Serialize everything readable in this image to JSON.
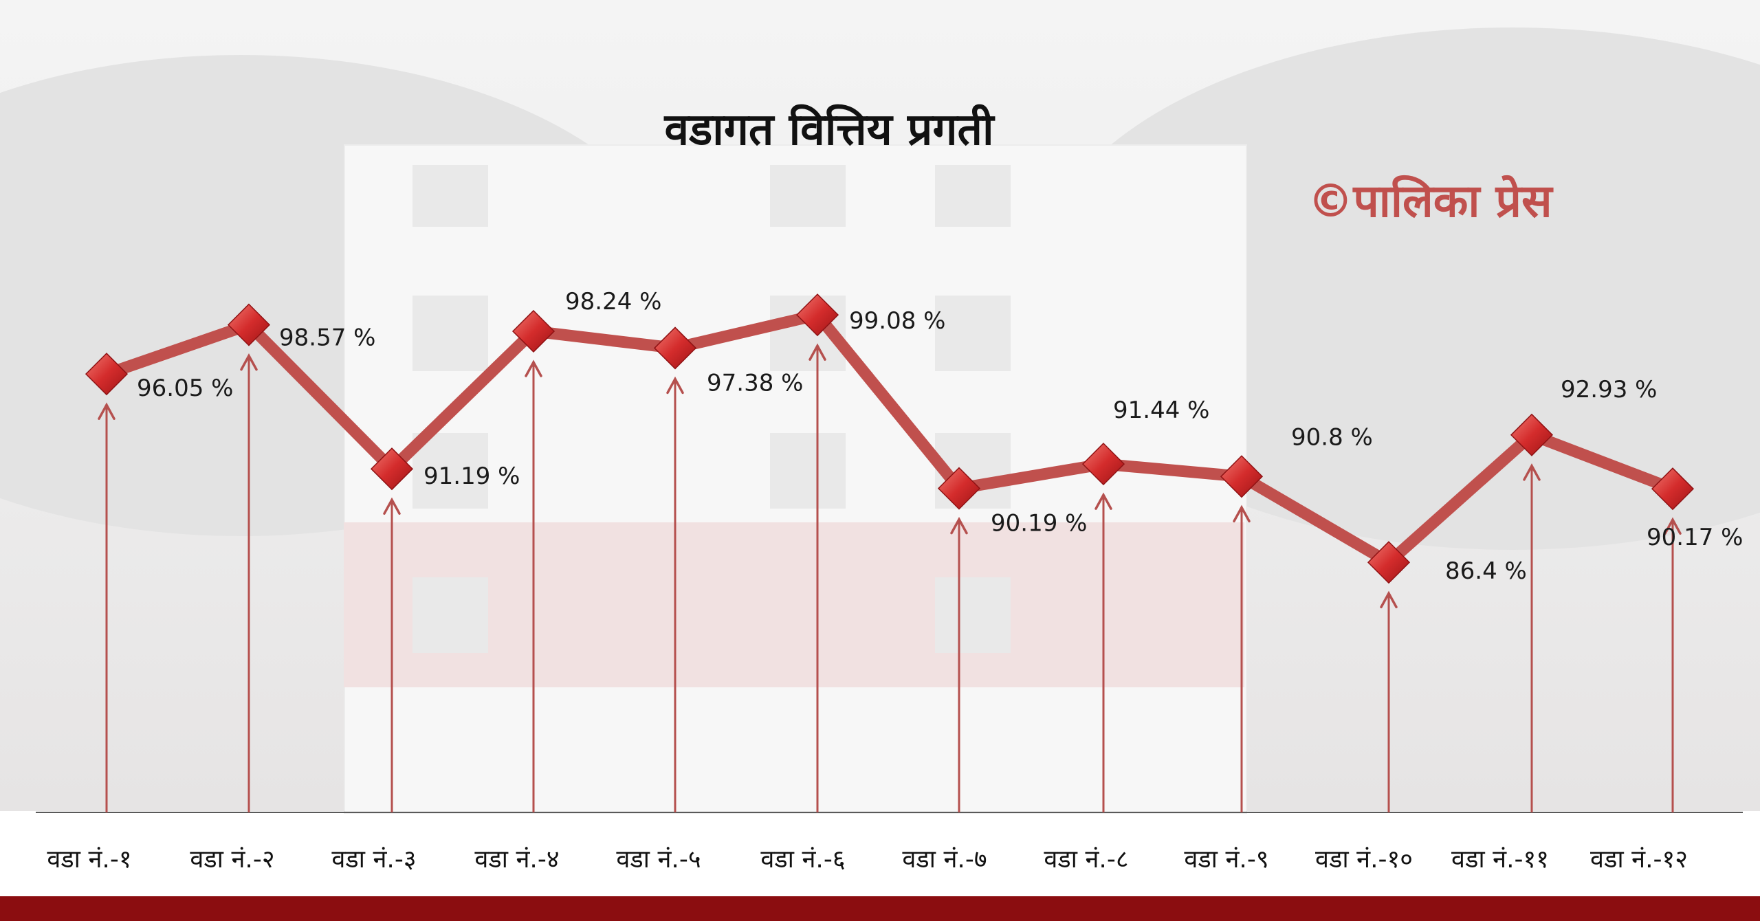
{
  "chart_data": {
    "type": "line",
    "title": "वडागत वित्तिय प्रगती",
    "categories": [
      "वडा नं.-१",
      "वडा नं.-२",
      "वडा नं.-३",
      "वडा नं.-४",
      "वडा नं.-५",
      "वडा नं.-६",
      "वडा नं.-७",
      "वडा नं.-८",
      "वडा नं.-९",
      "वडा नं.-१०",
      "वडा नं.-११",
      "वडा नं.-१२"
    ],
    "values": [
      96.05,
      98.57,
      91.19,
      98.24,
      97.38,
      99.08,
      90.19,
      91.44,
      90.8,
      86.4,
      92.93,
      90.17
    ],
    "data_labels": [
      "96.05 %",
      "98.57 %",
      "91.19 %",
      "98.24 %",
      "97.38 %",
      "99.08 %",
      "90.19 %",
      "91.44 %",
      "90.8 %",
      "86.4 %",
      "92.93 %",
      "90.17 %"
    ],
    "xlabel": "",
    "ylabel": "",
    "grid": false,
    "legend": "none",
    "colors": {
      "line": "#c0504d",
      "marker": "#d42c2c",
      "arrow": "#b5504e",
      "axis": "#595959",
      "brand": "#c0504d",
      "bottom_bar": "#8b0d10"
    }
  },
  "brand": "©पालिका प्रेस"
}
